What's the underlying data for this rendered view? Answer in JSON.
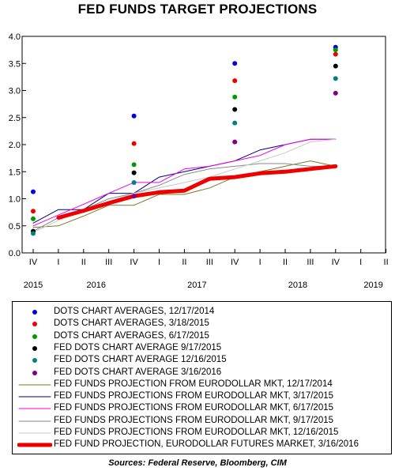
{
  "title": "FED FUNDS TARGET PROJECTIONS",
  "source": "Sources: Federal Reserve, Bloomberg, CIM",
  "chart_data": {
    "type": "line",
    "title": "FED FUNDS TARGET PROJECTIONS",
    "ylim": [
      0.0,
      4.0
    ],
    "y_ticks": [
      "0.0",
      "0.5",
      "1.0",
      "1.5",
      "2.0",
      "2.5",
      "3.0",
      "3.5",
      "4.0"
    ],
    "quarters": [
      "IV",
      "I",
      "II",
      "III",
      "IV",
      "I",
      "II",
      "III",
      "IV",
      "I",
      "II",
      "III",
      "IV",
      "I",
      "II"
    ],
    "years": [
      {
        "label": "2015",
        "at": 0
      },
      {
        "label": "2016",
        "at": 2.5
      },
      {
        "label": "2017",
        "at": 6.5
      },
      {
        "label": "2018",
        "at": 10.5
      },
      {
        "label": "2019",
        "at": 13.5
      }
    ],
    "grid": false,
    "legend_position": "bottom",
    "dot_series": [
      {
        "name": "DOTS CHART AVERAGES, 12/17/2014",
        "color": "#0000dd",
        "points": [
          [
            0,
            1.13
          ],
          [
            4,
            2.53
          ],
          [
            8,
            3.5
          ],
          [
            12,
            3.8
          ]
        ]
      },
      {
        "name": "DOTS CHART AVERAGES, 3/18/2015",
        "color": "#ee0000",
        "points": [
          [
            0,
            0.77
          ],
          [
            4,
            2.02
          ],
          [
            8,
            3.18
          ],
          [
            12,
            3.67
          ]
        ]
      },
      {
        "name": "DOTS CHART AVERAGES, 6/17/2015",
        "color": "#009900",
        "points": [
          [
            0,
            0.63
          ],
          [
            4,
            1.63
          ],
          [
            8,
            2.88
          ],
          [
            12,
            3.75
          ]
        ]
      },
      {
        "name": "FED DOTS CHART AVERAGE 9/17/2015",
        "color": "#000000",
        "points": [
          [
            0,
            0.4
          ],
          [
            4,
            1.48
          ],
          [
            8,
            2.65
          ],
          [
            12,
            3.45
          ]
        ]
      },
      {
        "name": "FED DOTS CHART AVERAGE 12/16/2015",
        "color": "#008080",
        "points": [
          [
            0,
            0.36
          ],
          [
            4,
            1.3
          ],
          [
            8,
            2.4
          ],
          [
            12,
            3.22
          ]
        ]
      },
      {
        "name": "FED DOTS CHART AVERAGE 3/16/2016",
        "color": "#800080",
        "points": [
          [
            4,
            1.05
          ],
          [
            8,
            2.05
          ],
          [
            12,
            2.95
          ]
        ]
      }
    ],
    "line_series": [
      {
        "name": "FED FUNDS PROJECTION FROM EURODOLLAR MKT, 12/17/2014",
        "color": "#7a7a2a",
        "width": 1,
        "points": [
          [
            0,
            0.47
          ],
          [
            1,
            0.5
          ],
          [
            2,
            0.68
          ],
          [
            3,
            0.88
          ],
          [
            4,
            0.88
          ],
          [
            5,
            1.08
          ],
          [
            6,
            1.08
          ],
          [
            7,
            1.2
          ],
          [
            8,
            1.4
          ],
          [
            9,
            1.5
          ],
          [
            10,
            1.6
          ],
          [
            11,
            1.7
          ],
          [
            12,
            1.6
          ]
        ]
      },
      {
        "name": "FED FUNDS PROJECTIONS FROM EURODOLLAR MKT, 3/17/2015",
        "color": "#000080",
        "width": 1,
        "points": [
          [
            0,
            0.55
          ],
          [
            1,
            0.8
          ],
          [
            2,
            0.8
          ],
          [
            3,
            1.1
          ],
          [
            4,
            1.1
          ],
          [
            5,
            1.4
          ],
          [
            6,
            1.5
          ],
          [
            7,
            1.6
          ],
          [
            8,
            1.7
          ],
          [
            9,
            1.9
          ],
          [
            10,
            2.0
          ],
          [
            11,
            2.1
          ],
          [
            12,
            2.1
          ]
        ]
      },
      {
        "name": "FED FUNDS PROJECTIONS FROM EURODOLLAR MKT, 6/17/2015",
        "color": "#ee00ee",
        "width": 1,
        "points": [
          [
            0,
            0.5
          ],
          [
            1,
            0.7
          ],
          [
            2,
            0.9
          ],
          [
            3,
            1.1
          ],
          [
            4,
            1.3
          ],
          [
            5,
            1.3
          ],
          [
            6,
            1.55
          ],
          [
            7,
            1.6
          ],
          [
            8,
            1.7
          ],
          [
            9,
            1.8
          ],
          [
            10,
            2.0
          ],
          [
            11,
            2.1
          ],
          [
            12,
            2.1
          ]
        ]
      },
      {
        "name": "FED FUNDS PROJECTIONS FROM EURODOLLAR MKT, 9/17/2015",
        "color": "#8a8a8a",
        "width": 1,
        "points": [
          [
            0,
            0.4
          ],
          [
            1,
            0.65
          ],
          [
            2,
            0.8
          ],
          [
            3,
            1.0
          ],
          [
            4,
            1.1
          ],
          [
            5,
            1.25
          ],
          [
            6,
            1.45
          ],
          [
            7,
            1.55
          ],
          [
            8,
            1.6
          ],
          [
            9,
            1.65
          ],
          [
            10,
            1.65
          ],
          [
            11,
            1.6
          ],
          [
            12,
            1.6
          ]
        ]
      },
      {
        "name": "FED FUNDS PROJECTIONS FROM EURODOLLAR MKT, 12/16/2015",
        "color": "#c8c8c8",
        "width": 1,
        "points": [
          [
            0,
            0.38
          ],
          [
            1,
            0.6
          ],
          [
            2,
            0.8
          ],
          [
            3,
            0.95
          ],
          [
            4,
            1.1
          ],
          [
            5,
            1.2
          ],
          [
            6,
            1.3
          ],
          [
            7,
            1.4
          ],
          [
            8,
            1.55
          ],
          [
            9,
            1.7
          ],
          [
            10,
            1.85
          ],
          [
            11,
            2.05
          ],
          [
            12,
            2.1
          ]
        ]
      },
      {
        "name": "FED FUND PROJECTION, EURODOLLAR FUTURES MARKET, 3/16/2016",
        "color": "#ee0000",
        "width": 5,
        "points": [
          [
            1,
            0.65
          ],
          [
            2,
            0.78
          ],
          [
            3,
            0.92
          ],
          [
            4,
            1.05
          ],
          [
            5,
            1.12
          ],
          [
            6,
            1.15
          ],
          [
            7,
            1.37
          ],
          [
            8,
            1.4
          ],
          [
            9,
            1.47
          ],
          [
            10,
            1.5
          ],
          [
            11,
            1.55
          ],
          [
            12,
            1.6
          ]
        ]
      }
    ]
  }
}
